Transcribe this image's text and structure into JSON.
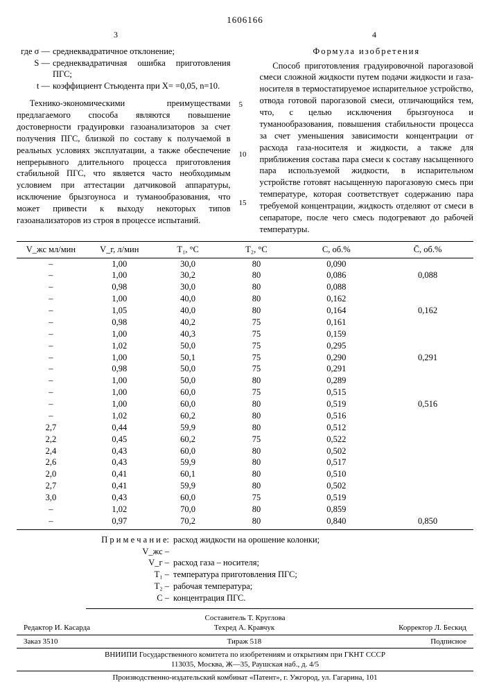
{
  "doc_number": "1606166",
  "page_left": "3",
  "page_right": "4",
  "left_col": {
    "defs_intro": "где σ —",
    "defs": [
      {
        "sym": "",
        "txt": "среднеквадратичное отклонение;"
      },
      {
        "sym": "S —",
        "txt": "среднеквадратичная ошибка приготовления ПГС;"
      },
      {
        "sym": "t —",
        "txt": "коэффициент Стьюдента при X= =0,05, n=10."
      }
    ],
    "para1": "Технико-экономическими преимуществами предлагаемого способа являются повышение достоверности градуировки газоанализаторов за счет получения ПГС, близкой по составу к получаемой в реальных условиях эксплуатации, а также обеспечение непрерывного длительного процесса приготовления стабильной ПГС, что является часто необходимым условием при аттестации датчиковой аппаратуры, исключение брызгоуноса и туманообразования, что может привести к выходу некоторых типов газоанализаторов из строя в процессе испытаний."
  },
  "right_col": {
    "formula_title": "Формула изобретения",
    "para1": "Способ приготовления градуировочной парогазовой смеси сложной жидкости путем подачи жидкости и газа-носителя в термостатируемое испарительное устройство, отвода готовой парогазовой смеси, отличающийся тем, что, с целью исключения брызгоуноса и туманообразования, повышения стабильности процесса за счет уменьшения зависимости концентрации от расхода газа-носителя и жидкости, а также для приближения состава пара смеси к составу насыщенного пара используемой жидкости, в испарительном устройстве готовят насыщенную парогазовую смесь при температуре, которая соответствует содержанию пара требуемой концентрации, жидкость отделяют от смеси в сепараторе, после чего смесь подогревают до рабочей температуры."
  },
  "margin_labels": {
    "a": "5",
    "b": "10",
    "c": "15"
  },
  "table": {
    "headers": [
      "V_жс мл/мин",
      "V_г, л/мин",
      "T₁, °C",
      "T₂, °C",
      "C, об.%",
      "C̄, об.%"
    ],
    "rows": [
      [
        "–",
        "1,00",
        "30,0",
        "80",
        "0,090",
        ""
      ],
      [
        "–",
        "1,00",
        "30,2",
        "80",
        "0,086",
        "0,088"
      ],
      [
        "–",
        "0,98",
        "30,0",
        "80",
        "0,088",
        ""
      ],
      [
        "–",
        "1,00",
        "40,0",
        "80",
        "0,162",
        ""
      ],
      [
        "–",
        "1,05",
        "40,0",
        "80",
        "0,164",
        "0,162"
      ],
      [
        "–",
        "0,98",
        "40,2",
        "75",
        "0,161",
        ""
      ],
      [
        "–",
        "1,00",
        "40,3",
        "75",
        "0,159",
        ""
      ],
      [
        "–",
        "1,02",
        "50,0",
        "75",
        "0,295",
        ""
      ],
      [
        "–",
        "1,00",
        "50,1",
        "75",
        "0,290",
        "0,291"
      ],
      [
        "–",
        "0,98",
        "50,0",
        "75",
        "0,291",
        ""
      ],
      [
        "–",
        "1,00",
        "50,0",
        "80",
        "0,289",
        ""
      ],
      [
        "–",
        "1,00",
        "60,0",
        "75",
        "0,515",
        ""
      ],
      [
        "–",
        "1,00",
        "60,0",
        "80",
        "0,519",
        "0,516"
      ],
      [
        "–",
        "1,02",
        "60,2",
        "80",
        "0,516",
        ""
      ],
      [
        "2,7",
        "0,44",
        "59,9",
        "80",
        "0,512",
        ""
      ],
      [
        "2,2",
        "0,45",
        "60,2",
        "75",
        "0,522",
        ""
      ],
      [
        "2,4",
        "0,43",
        "60,0",
        "80",
        "0,502",
        ""
      ],
      [
        "2,6",
        "0,43",
        "59,9",
        "80",
        "0,517",
        ""
      ],
      [
        "2,0",
        "0,41",
        "60,1",
        "80",
        "0,510",
        ""
      ],
      [
        "2,7",
        "0,41",
        "59,9",
        "80",
        "0,502",
        ""
      ],
      [
        "3,0",
        "0,43",
        "60,0",
        "75",
        "0,519",
        ""
      ],
      [
        "–",
        "1,02",
        "70,0",
        "80",
        "0,859",
        ""
      ],
      [
        "–",
        "0,97",
        "70,2",
        "80",
        "0,840",
        "0,850"
      ]
    ]
  },
  "notes": {
    "intro": "П р и м е ч а н и е:",
    "items": [
      {
        "sym": "V_жс –",
        "txt": "расход жидкости на орошение колонки;"
      },
      {
        "sym": "V_г –",
        "txt": "расход газа – носителя;"
      },
      {
        "sym": "T₁ –",
        "txt": "температура приготовления ПГС;"
      },
      {
        "sym": "T₂ –",
        "txt": "рабочая температура;"
      },
      {
        "sym": "C –",
        "txt": "концентрация ПГС."
      }
    ]
  },
  "credits": {
    "compiler": "Составитель Т. Круглова",
    "left": "Редактор И. Касарда",
    "center": "Техред А. Кравчук",
    "right": "Корректор Л. Бескид",
    "order_left": "Заказ 3510",
    "order_center": "Тираж 518",
    "order_right": "Подписное",
    "org1": "ВНИИПИ Государственного комитета по изобретениям и открытиям при ГКНТ СССР",
    "org2": "113035, Москва, Ж—35, Раушская наб., д. 4/5",
    "org3": "Производственно-издательский комбинат «Патент», г. Ужгород, ул. Гагарина, 101"
  }
}
